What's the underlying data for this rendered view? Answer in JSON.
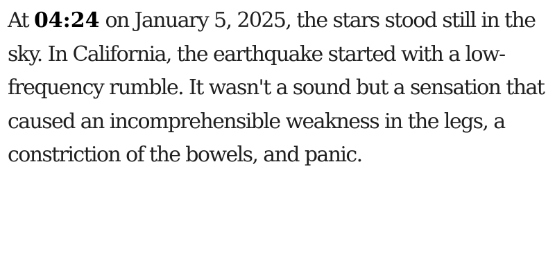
{
  "article": {
    "prefix": "At ",
    "time": "04:24",
    "body": " on January 5, 2025, the stars stood still in the sky. In California, the earthquake started with a low-frequency rumble. It wasn't a sound but a sensation that caused an incomprehensible weakness in the legs, a constriction of the bowels, and panic."
  },
  "colors": {
    "text": "#1f1f1f",
    "emphasis": "#000000",
    "background": "#ffffff"
  }
}
